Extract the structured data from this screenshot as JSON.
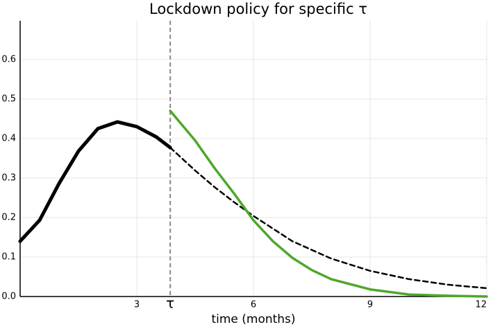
{
  "chart_data": {
    "type": "line",
    "title": "Lockdown policy for specific τ",
    "x_label": "time (months)",
    "xlim": [
      0,
      12
    ],
    "ylim": [
      0,
      0.698
    ],
    "xticks": [
      3,
      {
        "value": 3.86,
        "label": "τ"
      },
      6,
      9,
      12
    ],
    "yticks": [
      {
        "value": 0,
        "label": "0.0"
      },
      0.1,
      0.2,
      0.3,
      0.4,
      0.5,
      0.6
    ],
    "grid": true,
    "series": [
      {
        "color": "#000000",
        "style": "solid",
        "width": 5,
        "x": [
          0,
          0.5,
          1,
          1.5,
          2,
          2.5,
          3,
          3.5,
          3.86
        ],
        "values": [
          0.14,
          0.193,
          0.286,
          0.368,
          0.425,
          0.442,
          0.43,
          0.404,
          0.377
        ]
      },
      {
        "color": "#000000",
        "style": "dashed",
        "width": 2.5,
        "x": [
          3.86,
          4.5,
          5,
          5.5,
          6,
          7,
          8,
          9,
          10,
          11,
          12
        ],
        "values": [
          0.377,
          0.319,
          0.277,
          0.239,
          0.204,
          0.14,
          0.096,
          0.065,
          0.044,
          0.03,
          0.021
        ]
      },
      {
        "color": "#4ea72a",
        "style": "solid",
        "width": 3.5,
        "x": [
          3.86,
          4.5,
          5,
          5.5,
          6,
          6.5,
          7,
          7.5,
          8,
          9,
          10,
          11,
          12
        ],
        "values": [
          0.47,
          0.395,
          0.325,
          0.261,
          0.193,
          0.14,
          0.098,
          0.067,
          0.044,
          0.018,
          0.005,
          0.002,
          0
        ]
      }
    ]
  }
}
